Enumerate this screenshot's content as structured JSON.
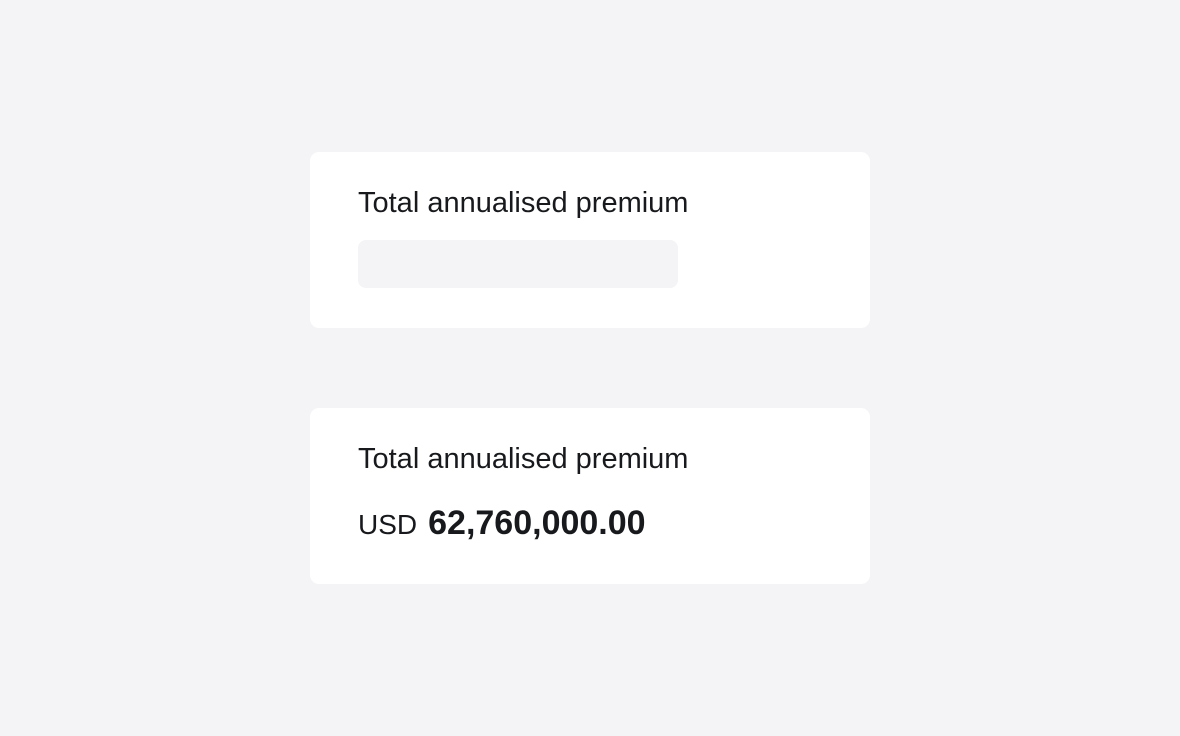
{
  "loading_card": {
    "label": "Total annualised premium"
  },
  "loaded_card": {
    "label": "Total annualised premium",
    "currency": "USD",
    "amount": "62,760,000.00"
  },
  "colors": {
    "background": "#f4f4f6",
    "card": "#ffffff",
    "text": "#17191c",
    "skeleton": "#f4f4f6"
  }
}
